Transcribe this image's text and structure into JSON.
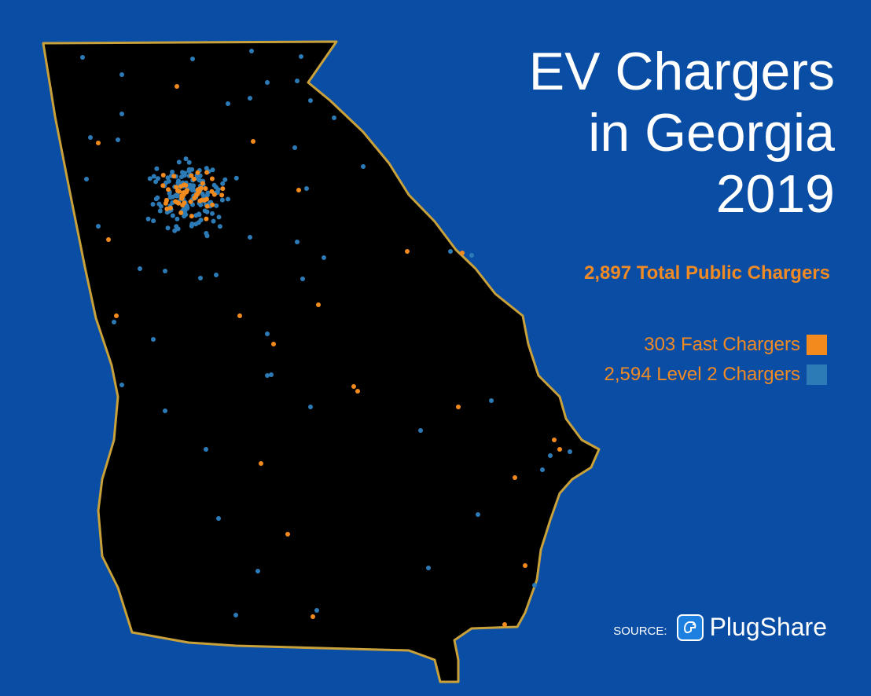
{
  "title": {
    "line1": "EV Chargers",
    "line2": "in Georgia",
    "line3": "2019"
  },
  "total": "2,897 Total Public Chargers",
  "legend": {
    "fast": {
      "label": "303 Fast Chargers",
      "color": "#f28a1e"
    },
    "level2": {
      "label": "2,594 Level 2 Chargers",
      "color": "#2c7bb6"
    }
  },
  "source": {
    "label": "SOURCE:",
    "brand": "PlugShare",
    "icon": "plug-icon"
  },
  "colors": {
    "background": "#0a4da4",
    "state_fill": "#000000",
    "state_border": "#c9a13a"
  }
}
